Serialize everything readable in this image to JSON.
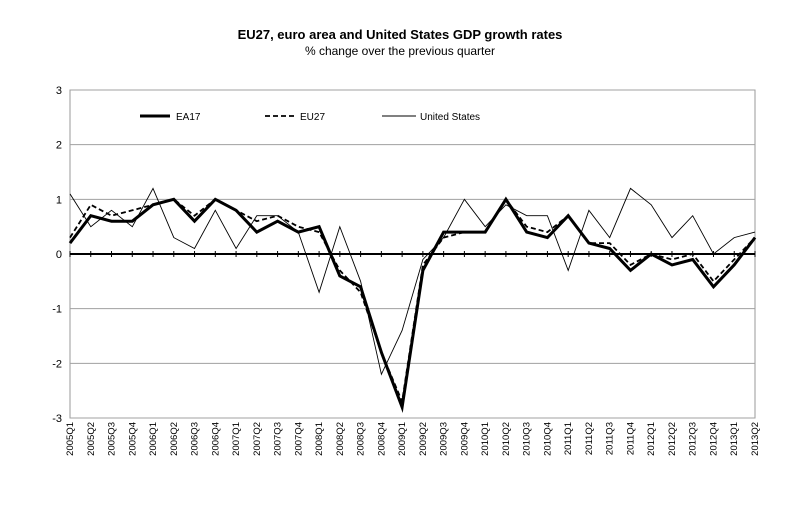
{
  "chart_data": {
    "type": "line",
    "title": "EU27, euro area and United States GDP growth rates",
    "subtitle": "% change over the previous quarter",
    "xlabel": "",
    "ylabel": "",
    "ylim": [
      -3,
      3
    ],
    "yticks": [
      3,
      2,
      1,
      0,
      -1,
      -2,
      -3
    ],
    "grid": true,
    "legend_position": "top-left",
    "categories": [
      "2005Q1",
      "2005Q2",
      "2005Q3",
      "2005Q4",
      "2006Q1",
      "2006Q2",
      "2006Q3",
      "2006Q4",
      "2007Q1",
      "2007Q2",
      "2007Q3",
      "2007Q4",
      "2008Q1",
      "2008Q2",
      "2008Q3",
      "2008Q4",
      "2009Q1",
      "2009Q2",
      "2009Q3",
      "2009Q4",
      "2010Q1",
      "2010Q2",
      "2010Q3",
      "2010Q4",
      "2011Q1",
      "2011Q2",
      "2011Q3",
      "2011Q4",
      "2012Q1",
      "2012Q2",
      "2012Q3",
      "2012Q4",
      "2013Q1",
      "2013Q2"
    ],
    "series": [
      {
        "name": "EA17",
        "style": "thick",
        "color": "#000000",
        "values": [
          0.2,
          0.7,
          0.6,
          0.6,
          0.9,
          1.0,
          0.6,
          1.0,
          0.8,
          0.4,
          0.6,
          0.4,
          0.5,
          -0.4,
          -0.6,
          -1.8,
          -2.8,
          -0.3,
          0.4,
          0.4,
          0.4,
          1.0,
          0.4,
          0.3,
          0.7,
          0.2,
          0.1,
          -0.3,
          0.0,
          -0.2,
          -0.1,
          -0.6,
          -0.2,
          0.3
        ]
      },
      {
        "name": "EU27",
        "style": "dashed",
        "color": "#000000",
        "values": [
          0.3,
          0.9,
          0.7,
          0.8,
          0.9,
          1.0,
          0.7,
          1.0,
          0.8,
          0.6,
          0.7,
          0.5,
          0.4,
          -0.3,
          -0.7,
          -1.8,
          -2.7,
          -0.2,
          0.3,
          0.4,
          0.4,
          1.0,
          0.5,
          0.4,
          0.7,
          0.2,
          0.2,
          -0.2,
          0.0,
          -0.1,
          0.0,
          -0.5,
          -0.1,
          0.3
        ]
      },
      {
        "name": "United States",
        "style": "thin",
        "color": "#000000",
        "values": [
          1.1,
          0.5,
          0.8,
          0.5,
          1.2,
          0.3,
          0.1,
          0.8,
          0.1,
          0.7,
          0.7,
          0.4,
          -0.7,
          0.5,
          -0.5,
          -2.2,
          -1.4,
          -0.1,
          0.3,
          1.0,
          0.5,
          0.9,
          0.7,
          0.7,
          -0.3,
          0.8,
          0.3,
          1.2,
          0.9,
          0.3,
          0.7,
          0.0,
          0.3,
          0.4
        ]
      }
    ]
  }
}
